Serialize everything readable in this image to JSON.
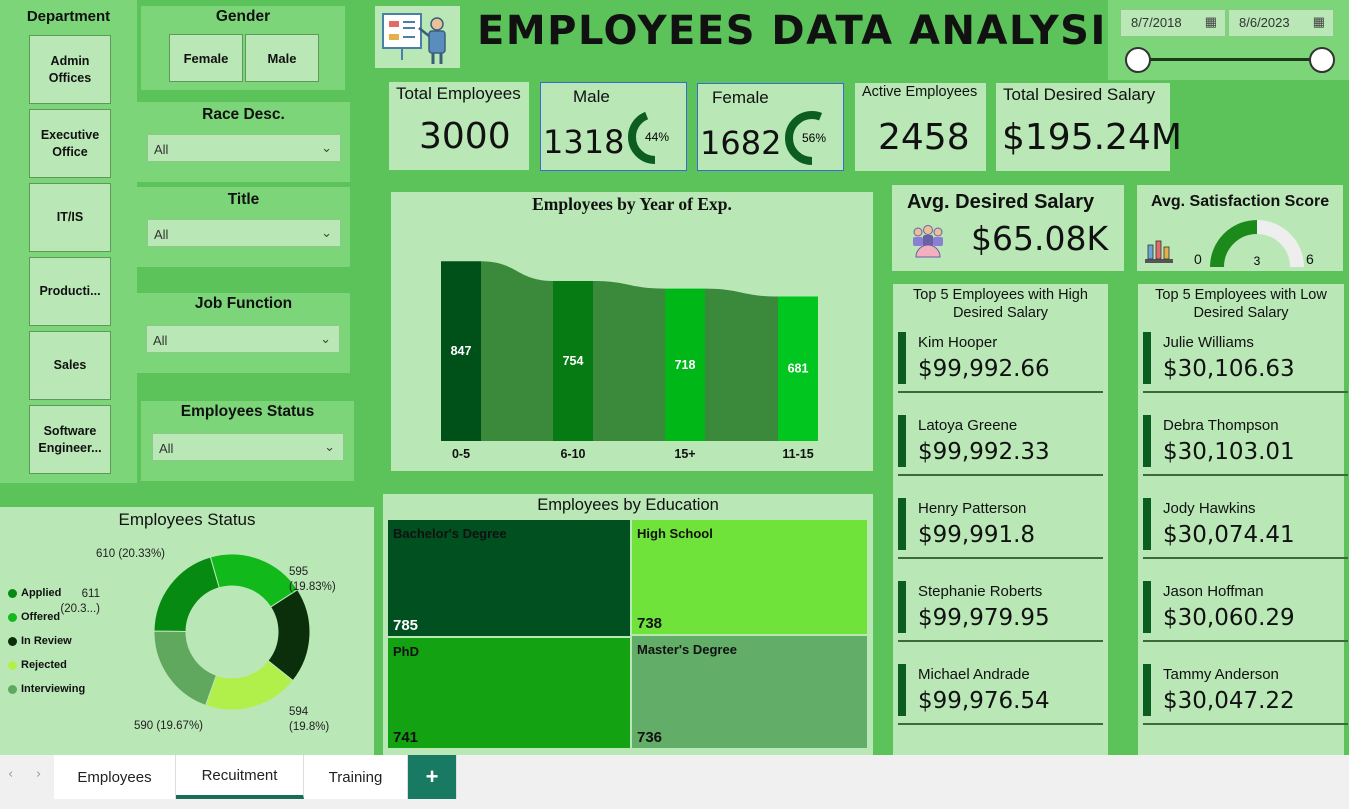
{
  "header": {
    "title": "EMPLOYEES DATA ANALYSIS"
  },
  "date_range": {
    "start": "8/7/2018",
    "end": "8/6/2023"
  },
  "slicers": {
    "department": {
      "title": "Department",
      "items": [
        "Admin Offices",
        "Executive Office",
        "IT/IS",
        "Producti...",
        "Sales",
        "Software Engineer..."
      ]
    },
    "gender": {
      "title": "Gender",
      "items": [
        "Female",
        "Male"
      ]
    },
    "race": {
      "title": "Race Desc.",
      "value": "All"
    },
    "title": {
      "title": "Title",
      "value": "All"
    },
    "job_function": {
      "title": "Job Function",
      "value": "All"
    },
    "employee_status": {
      "title": "Employees Status",
      "value": "All"
    }
  },
  "kpis": {
    "total_employees": {
      "label": "Total Employees",
      "value": "3000"
    },
    "male": {
      "label": "Male",
      "value": "1318",
      "pct": "44%",
      "fraction": 0.44
    },
    "female": {
      "label": "Female",
      "value": "1682",
      "pct": "56%",
      "fraction": 0.56
    },
    "active": {
      "label": "Active Employees",
      "value": "2458"
    },
    "desired_salary": {
      "label": "Total Desired Salary",
      "value": "$195.24M"
    },
    "avg_desired_salary": {
      "label": "Avg. Desired Salary",
      "value": "$65.08K"
    },
    "avg_satisfaction": {
      "label": "Avg. Satisfaction Score",
      "min": "0",
      "max": "6",
      "value": "3",
      "fraction": 0.5
    }
  },
  "colors": {
    "dark": "#005a1e",
    "mid": "#0f9e0f",
    "bright": "#00c41a",
    "lime": "#70e33a",
    "muted": "#62ad67"
  },
  "chart_data": [
    {
      "type": "bar",
      "title": "Employees by Year of Exp.",
      "categories": [
        "0-5",
        "6-10",
        "15+",
        "11-15"
      ],
      "values": [
        847,
        754,
        718,
        681
      ],
      "ylim": [
        0,
        900
      ]
    },
    {
      "type": "pie",
      "title": "Employees Status",
      "categories": [
        "Applied",
        "Offered",
        "In Review",
        "Rejected",
        "Interviewing"
      ],
      "values": [
        611,
        610,
        595,
        594,
        590
      ],
      "labels": [
        "611 (20.3...)",
        "610 (20.33%)",
        "595 (19.83%)",
        "594 (19.8%)",
        "590 (19.67%)"
      ],
      "legend": "left"
    },
    {
      "type": "heatmap",
      "title": "Employees by Education",
      "categories": [
        "Bachelor's Degree",
        "High School",
        "PhD",
        "Master's Degree"
      ],
      "values": [
        785,
        738,
        741,
        736
      ]
    }
  ],
  "top_high": {
    "title": "Top 5 Employees with High Desired Salary",
    "items": [
      {
        "name": "Kim Hooper",
        "salary": "$99,992.66"
      },
      {
        "name": "Latoya Greene",
        "salary": "$99,992.33"
      },
      {
        "name": "Henry Patterson",
        "salary": "$99,991.8"
      },
      {
        "name": "Stephanie Roberts",
        "salary": "$99,979.95"
      },
      {
        "name": "Michael Andrade",
        "salary": "$99,976.54"
      }
    ]
  },
  "top_low": {
    "title": "Top 5 Employees with Low Desired Salary",
    "items": [
      {
        "name": "Julie Williams",
        "salary": "$30,106.63"
      },
      {
        "name": "Debra Thompson",
        "salary": "$30,103.01"
      },
      {
        "name": "Jody Hawkins",
        "salary": "$30,074.41"
      },
      {
        "name": "Jason Hoffman",
        "salary": "$30,060.29"
      },
      {
        "name": "Tammy Anderson",
        "salary": "$30,047.22"
      }
    ]
  },
  "tabs": {
    "items": [
      "Employees",
      "Recuitment",
      "Training"
    ],
    "active": "Recuitment",
    "add": "+"
  }
}
